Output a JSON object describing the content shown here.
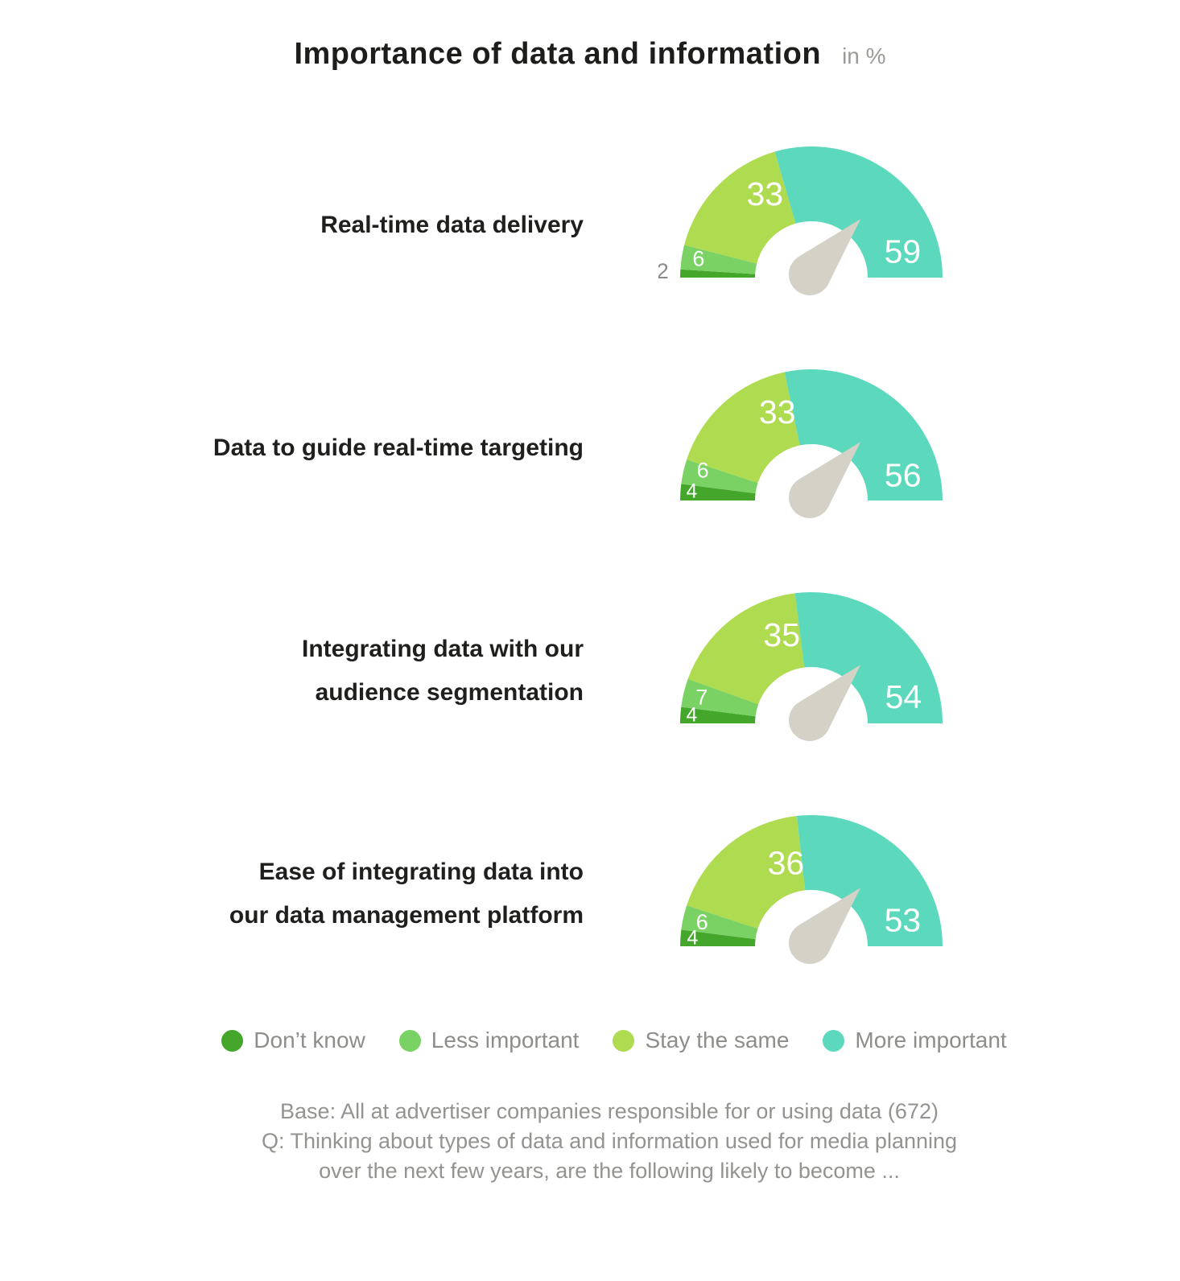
{
  "title": {
    "text": "Importance of data and information",
    "unit": "in %"
  },
  "chart_data": {
    "type": "gauge",
    "gauge_shape": "semicircle_donut",
    "scale": {
      "min": 0,
      "max": 100,
      "sweep_deg": 180
    },
    "unit": "%",
    "categories": [
      "Don’t know",
      "Less important",
      "Stay the same",
      "More important"
    ],
    "colors": [
      "#45a62c",
      "#79d263",
      "#aedb4f",
      "#5cd9bc"
    ],
    "needle_color": "#d4d1c7",
    "rows": [
      {
        "label_lines": [
          "Real-time data delivery"
        ],
        "values": [
          2,
          6,
          33,
          59
        ]
      },
      {
        "label_lines": [
          "Data to guide real-time targeting"
        ],
        "values": [
          4,
          6,
          33,
          56
        ]
      },
      {
        "label_lines": [
          "Integrating data with our",
          "audience segmentation"
        ],
        "values": [
          4,
          7,
          35,
          54
        ]
      },
      {
        "label_lines": [
          "Ease of integrating data into",
          "our data management platform"
        ],
        "values": [
          4,
          6,
          36,
          53
        ]
      }
    ]
  },
  "legend": {
    "items": [
      {
        "label": "Don’t know",
        "color": "#45a62c"
      },
      {
        "label": "Less important",
        "color": "#79d263"
      },
      {
        "label": "Stay the same",
        "color": "#aedb4f"
      },
      {
        "label": "More important",
        "color": "#5cd9bc"
      }
    ]
  },
  "footer": {
    "base": "Base: All at advertiser companies responsible for or using data (672)",
    "question_lines": [
      "Q: Thinking about types of data and information used for media planning",
      "over the next few years, are the following likely to become ..."
    ]
  }
}
